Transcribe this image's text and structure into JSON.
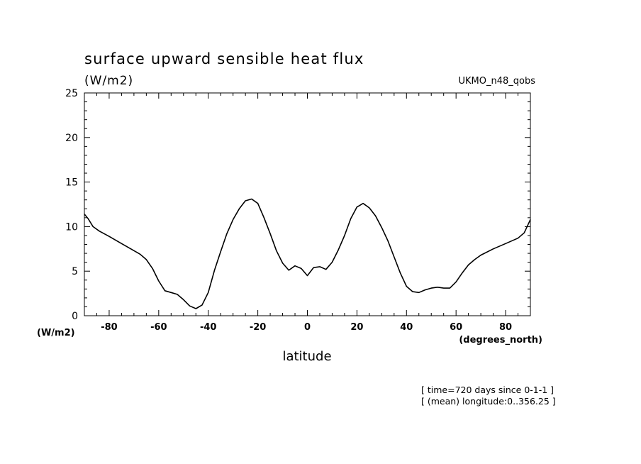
{
  "chart_data": {
    "type": "line",
    "title": "surface upward sensible heat flux",
    "units_label": "(W/m2)",
    "dataset_label": "UKMO_n48_qobs",
    "xlabel": "latitude",
    "x_units_label": "(degrees_north)",
    "y_units_label": "(W/m2)",
    "xlim": [
      -90,
      90
    ],
    "ylim": [
      0,
      25
    ],
    "x_ticks": [
      -80,
      -60,
      -40,
      -20,
      0,
      20,
      40,
      60,
      80
    ],
    "x_tick_labels": [
      "-80",
      "-60",
      "-40",
      "-20",
      "0",
      "20",
      "40",
      "60",
      "80"
    ],
    "y_ticks": [
      0,
      5,
      10,
      15,
      20,
      25
    ],
    "y_tick_labels": [
      "0",
      "5",
      "10",
      "15",
      "20",
      "25"
    ],
    "grid": false,
    "line_color": "#000000",
    "footnotes": [
      "[ time=720 days since 0-1-1 ]",
      "[ (mean) longitude:0..356.25 ]"
    ],
    "series": [
      {
        "x": [
          -90,
          -88.5,
          -86.5,
          -84,
          -80,
          -75,
          -70,
          -67.5,
          -65,
          -62.5,
          -60,
          -57.5,
          -55,
          -52.5,
          -50,
          -47.5,
          -45,
          -42.5,
          -40,
          -37.5,
          -35,
          -32.5,
          -30,
          -27.5,
          -25,
          -22.5,
          -20,
          -17.5,
          -15,
          -12.5,
          -10,
          -7.5,
          -5,
          -2.5,
          0,
          2.5,
          5,
          7.5,
          10,
          12.5,
          15,
          17.5,
          20,
          22.5,
          25,
          27.5,
          30,
          32.5,
          35,
          37.5,
          40,
          42.5,
          45,
          47.5,
          50,
          52.5,
          55,
          57.5,
          60,
          62.5,
          65,
          67.5,
          70,
          75,
          80,
          85,
          87.5,
          90
        ],
        "y": [
          11.4,
          10.9,
          10.0,
          9.5,
          8.9,
          8.1,
          7.3,
          6.9,
          6.3,
          5.3,
          3.9,
          2.8,
          2.6,
          2.4,
          1.8,
          1.1,
          0.8,
          1.2,
          2.6,
          5.1,
          7.2,
          9.2,
          10.8,
          12.0,
          12.9,
          13.1,
          12.6,
          11.0,
          9.2,
          7.3,
          5.9,
          5.1,
          5.6,
          5.3,
          4.5,
          5.4,
          5.5,
          5.2,
          6.0,
          7.4,
          9.0,
          10.9,
          12.2,
          12.6,
          12.1,
          11.2,
          9.9,
          8.4,
          6.6,
          4.8,
          3.3,
          2.7,
          2.6,
          2.9,
          3.1,
          3.2,
          3.1,
          3.1,
          3.8,
          4.8,
          5.7,
          6.3,
          6.8,
          7.5,
          8.1,
          8.7,
          9.3,
          10.8
        ]
      }
    ]
  }
}
